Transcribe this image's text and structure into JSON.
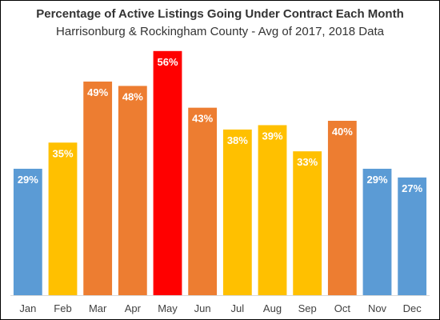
{
  "chart_data": {
    "type": "bar",
    "title": "Percentage of Active Listings Going Under Contract Each Month",
    "subtitle": "Harrisonburg & Rockingham County - Avg of 2017, 2018 Data",
    "categories": [
      "Jan",
      "Feb",
      "Mar",
      "Apr",
      "May",
      "Jun",
      "Jul",
      "Aug",
      "Sep",
      "Oct",
      "Nov",
      "Dec"
    ],
    "values": [
      29,
      35,
      49,
      48,
      56,
      43,
      38,
      39,
      33,
      40,
      29,
      27
    ],
    "data_labels": [
      "29%",
      "35%",
      "49%",
      "48%",
      "56%",
      "43%",
      "38%",
      "39%",
      "33%",
      "40%",
      "29%",
      "27%"
    ],
    "bar_colors": [
      "#5B9BD5",
      "#FFC000",
      "#ED7D31",
      "#ED7D31",
      "#FF0000",
      "#ED7D31",
      "#FFC000",
      "#FFC000",
      "#FFC000",
      "#ED7D31",
      "#5B9BD5",
      "#5B9BD5"
    ],
    "xlabel": "",
    "ylabel": "",
    "ylim": [
      0,
      60
    ],
    "grid": false,
    "legend": "none"
  }
}
